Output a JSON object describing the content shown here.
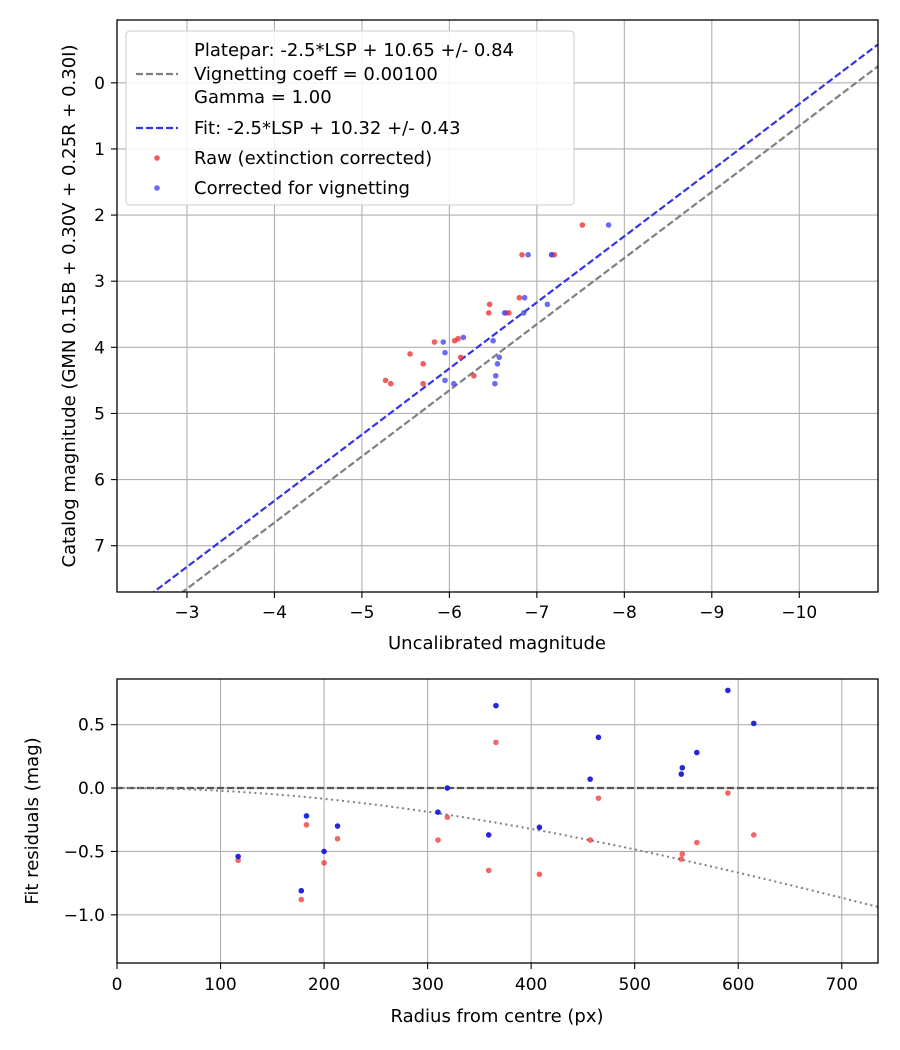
{
  "chart_data": [
    {
      "type": "scatter",
      "title": "",
      "xlabel": "Uncalibrated magnitude",
      "ylabel": "Catalog magnitude (GMN 0.15B + 0.30V + 0.25R + 0.30I)",
      "xlim": [
        -2.2,
        -10.9
      ],
      "ylim": [
        7.7,
        -0.95
      ],
      "xticks": [
        -3,
        -4,
        -5,
        -6,
        -7,
        -8,
        -9,
        -10
      ],
      "xtick_labels": [
        "−3",
        "−4",
        "−5",
        "−6",
        "−7",
        "−8",
        "−9",
        "−10"
      ],
      "yticks": [
        0,
        1,
        2,
        3,
        4,
        5,
        6,
        7
      ],
      "ytick_labels": [
        "0",
        "1",
        "2",
        "3",
        "4",
        "5",
        "6",
        "7"
      ],
      "grid": true,
      "legend_position": "upper-left",
      "lines": [
        {
          "name": "platepar",
          "color": "#808080",
          "dash": "dashed",
          "slope": -2.5,
          "offset": 10.65
        },
        {
          "name": "fit",
          "color": "#3434e6",
          "dash": "dashed",
          "slope": -2.5,
          "offset": 10.32
        }
      ],
      "legend": [
        "Platepar: -2.5*LSP + 10.65 +/- 0.84",
        "Vignetting coeff = 0.00100",
        "Gamma = 1.00",
        "Fit: -2.5*LSP + 10.32 +/- 0.43",
        "Raw (extinction corrected)",
        "Corrected for vignetting"
      ],
      "series": [
        {
          "name": "Raw (extinction corrected)",
          "color": "#ee3333",
          "x": [
            -7.52,
            -6.83,
            -7.17,
            -7.2,
            -6.8,
            -6.46,
            -6.65,
            -6.45,
            -6.68,
            -6.1,
            -6.06,
            -5.83,
            -5.55,
            -6.13,
            -5.7,
            -6.28,
            -5.27,
            -5.33,
            -5.7
          ],
          "y": [
            2.15,
            2.6,
            2.6,
            2.6,
            3.25,
            3.35,
            3.48,
            3.48,
            3.48,
            3.87,
            3.9,
            3.92,
            4.1,
            4.15,
            4.25,
            4.43,
            4.5,
            4.55,
            4.55
          ]
        },
        {
          "name": "Corrected for vignetting",
          "color": "#4747f0",
          "x": [
            -7.82,
            -6.9,
            -7.17,
            -6.86,
            -7.12,
            -6.63,
            -6.85,
            -6.16,
            -5.93,
            -6.5,
            -5.95,
            -6.57,
            -6.55,
            -6.53,
            -6.52,
            -5.95,
            -6.05
          ],
          "y": [
            2.15,
            2.6,
            2.6,
            3.25,
            3.35,
            3.48,
            3.48,
            3.85,
            3.92,
            3.9,
            4.08,
            4.15,
            4.25,
            4.43,
            4.55,
            4.5,
            4.55
          ]
        }
      ]
    },
    {
      "type": "scatter",
      "title": "",
      "xlabel": "Radius from centre (px)",
      "ylabel": "Fit residuals (mag)",
      "xlim": [
        0,
        735
      ],
      "ylim": [
        -1.38,
        0.86
      ],
      "xticks": [
        0,
        100,
        200,
        300,
        400,
        500,
        600,
        700
      ],
      "xtick_labels": [
        "0",
        "100",
        "200",
        "300",
        "400",
        "500",
        "600",
        "700"
      ],
      "yticks": [
        0.5,
        0.0,
        -0.5,
        -1.0
      ],
      "ytick_labels": [
        "0.5",
        "0.0",
        "−0.5",
        "−1.0"
      ],
      "grid": true,
      "reference_line": {
        "y": 0,
        "color": "#555555",
        "dash": "dashed"
      },
      "vignetting_curve": {
        "coeff": 0.001,
        "color": "#808080",
        "dash": "dotted"
      },
      "series": [
        {
          "name": "Raw",
          "color": "#ee3333",
          "x": [
            117,
            178,
            183,
            200,
            213,
            310,
            319,
            359,
            366,
            408,
            457,
            465,
            545,
            546,
            560,
            590,
            615
          ],
          "y": [
            -0.57,
            -0.88,
            -0.29,
            -0.59,
            -0.4,
            -0.41,
            -0.23,
            -0.65,
            0.36,
            -0.68,
            -0.41,
            -0.08,
            -0.56,
            -0.52,
            -0.43,
            -0.04,
            -0.37
          ]
        },
        {
          "name": "Corrected",
          "color": "#1a1ad9",
          "x": [
            117,
            178,
            183,
            200,
            213,
            310,
            319,
            359,
            366,
            408,
            457,
            465,
            545,
            546,
            560,
            590,
            615
          ],
          "y": [
            -0.54,
            -0.81,
            -0.22,
            -0.5,
            -0.3,
            -0.19,
            0.0,
            -0.37,
            0.65,
            -0.31,
            0.07,
            0.4,
            0.11,
            0.16,
            0.28,
            0.77,
            0.51
          ]
        }
      ]
    }
  ]
}
